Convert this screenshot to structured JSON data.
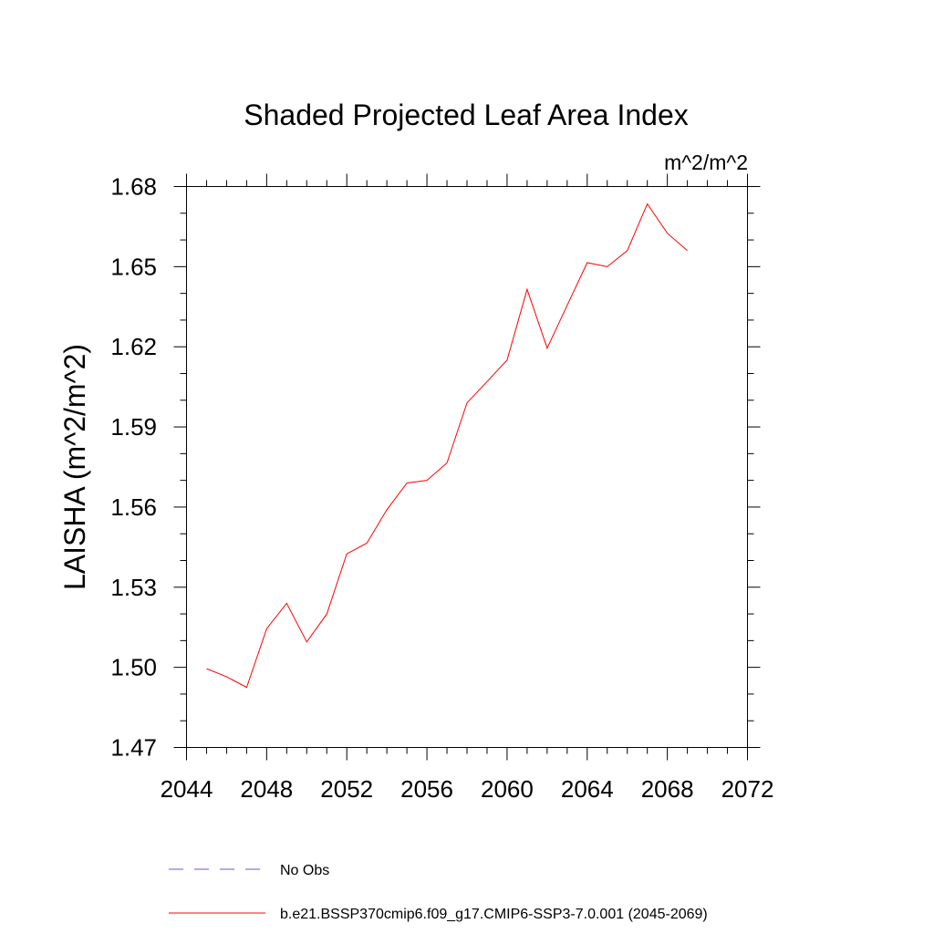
{
  "chart_data": {
    "type": "line",
    "title": "Shaded Projected Leaf Area Index",
    "units_label": "m^2/m^2",
    "ylabel": "LAISHA  (m^2/m^2)",
    "xlabel": "",
    "xlim": [
      2044,
      2072
    ],
    "ylim": [
      1.47,
      1.68
    ],
    "x_ticks": [
      "2044",
      "2048",
      "2052",
      "2056",
      "2060",
      "2064",
      "2068",
      "2072"
    ],
    "y_ticks": [
      "1.47",
      "1.50",
      "1.53",
      "1.56",
      "1.59",
      "1.62",
      "1.65",
      "1.68"
    ],
    "grid": false,
    "legend_position": "bottom",
    "series": [
      {
        "name": "b.e21.BSSP370cmip6.f09_g17.CMIP6-SSP3-7.0.001 (2045-2069)",
        "color": "#ff0000",
        "style": "solid",
        "x": [
          2045,
          2046,
          2047,
          2048,
          2049,
          2050,
          2051,
          2052,
          2053,
          2054,
          2055,
          2056,
          2057,
          2058,
          2059,
          2060,
          2061,
          2062,
          2063,
          2064,
          2065,
          2066,
          2067,
          2068,
          2069
        ],
        "values": [
          1.4995,
          1.4965,
          1.4925,
          1.5145,
          1.524,
          1.5095,
          1.52,
          1.5425,
          1.5465,
          1.559,
          1.569,
          1.57,
          1.5765,
          1.599,
          1.607,
          1.615,
          1.6415,
          1.6195,
          1.6355,
          1.6515,
          1.65,
          1.656,
          1.6735,
          1.6625,
          1.656
        ]
      }
    ],
    "legend": [
      {
        "label": "No Obs",
        "color": "#6a5acd",
        "style": "dashed"
      },
      {
        "label": "b.e21.BSSP370cmip6.f09_g17.CMIP6-SSP3-7.0.001 (2045-2069)",
        "color": "#ff0000",
        "style": "solid"
      }
    ]
  }
}
